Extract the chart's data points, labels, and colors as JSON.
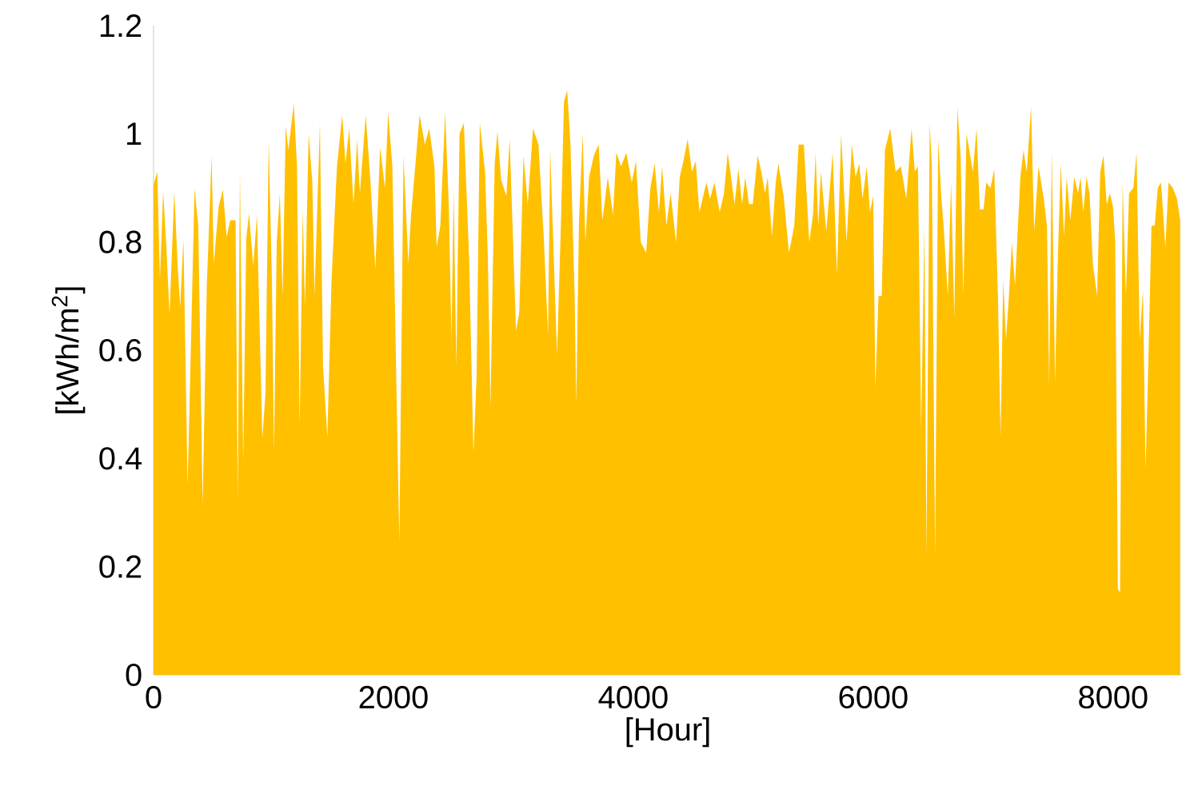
{
  "chart_data": {
    "type": "area",
    "xlabel": "[Hour]",
    "ylabel": "[kWh/m$^{2}$]",
    "color": "#ffc000",
    "xlim": [
      0,
      8575
    ],
    "ylim": [
      0,
      1.2
    ],
    "xticks": [
      0,
      2000,
      4000,
      6000,
      8000
    ],
    "yticks": [
      0,
      0.2,
      0.4,
      0.6,
      0.8,
      1,
      1.2
    ],
    "x": [
      0,
      31,
      53,
      80,
      107,
      133,
      173,
      200,
      222,
      249,
      284,
      342,
      373,
      409,
      444,
      484,
      502,
      542,
      578,
      609,
      640,
      684,
      702,
      720,
      747,
      773,
      796,
      831,
      862,
      907,
      933,
      960,
      987,
      1004,
      1027,
      1053,
      1076,
      1102,
      1124,
      1169,
      1196,
      1218,
      1244,
      1262,
      1293,
      1324,
      1342,
      1387,
      1413,
      1449,
      1484,
      1529,
      1573,
      1600,
      1631,
      1667,
      1698,
      1720,
      1769,
      1809,
      1849,
      1889,
      1929,
      1956,
      1991,
      2027,
      2049,
      2084,
      2124,
      2147,
      2178,
      2218,
      2262,
      2298,
      2342,
      2360,
      2391,
      2431,
      2462,
      2484,
      2502,
      2524,
      2551,
      2587,
      2631,
      2667,
      2693,
      2720,
      2764,
      2787,
      2809,
      2844,
      2867,
      2898,
      2942,
      2969,
      3022,
      3049,
      3084,
      3120,
      3164,
      3209,
      3253,
      3289,
      3307,
      3364,
      3396,
      3422,
      3449,
      3476,
      3511,
      3524,
      3547,
      3578,
      3600,
      3631,
      3671,
      3711,
      3742,
      3787,
      3831,
      3858,
      3898,
      3942,
      3987,
      4022,
      4062,
      4107,
      4142,
      4178,
      4213,
      4240,
      4276,
      4311,
      4356,
      4387,
      4418,
      4453,
      4489,
      4520,
      4551,
      4609,
      4640,
      4676,
      4720,
      4756,
      4787,
      4809,
      4844,
      4876,
      4907,
      4933,
      4964,
      4996,
      5036,
      5067,
      5098,
      5120,
      5156,
      5187,
      5209,
      5253,
      5298,
      5342,
      5378,
      5422,
      5467,
      5498,
      5520,
      5542,
      5564,
      5609,
      5662,
      5698,
      5733,
      5778,
      5822,
      5853,
      5884,
      5911,
      5947,
      5973,
      6000,
      6018,
      6044,
      6071,
      6098,
      6142,
      6187,
      6231,
      6276,
      6320,
      6347,
      6373,
      6400,
      6427,
      6444,
      6471,
      6489,
      6516,
      6542,
      6569,
      6587,
      6622,
      6649,
      6676,
      6702,
      6729,
      6751,
      6778,
      6809,
      6831,
      6862,
      6889,
      6920,
      6942,
      6978,
      7009,
      7040,
      7062,
      7084,
      7107,
      7129,
      7156,
      7182,
      7200,
      7227,
      7253,
      7280,
      7316,
      7342,
      7378,
      7422,
      7449,
      7467,
      7489,
      7516,
      7538,
      7564,
      7591,
      7613,
      7644,
      7676,
      7707,
      7729,
      7751,
      7778,
      7804,
      7831,
      7867,
      7893,
      7920,
      7947,
      7973,
      8000,
      8018,
      8040,
      8058,
      8080,
      8107,
      8133,
      8169,
      8196,
      8222,
      8249,
      8271,
      8293,
      8320,
      8347,
      8373,
      8400,
      8436,
      8462,
      8498,
      8533,
      8560
    ],
    "values": [
      0.906,
      0.93,
      0.73,
      0.894,
      0.79,
      0.666,
      0.894,
      0.76,
      0.68,
      0.806,
      0.35,
      0.9,
      0.83,
      0.314,
      0.72,
      0.96,
      0.76,
      0.865,
      0.897,
      0.81,
      0.84,
      0.84,
      0.32,
      0.935,
      0.393,
      0.806,
      0.853,
      0.755,
      0.85,
      0.437,
      0.52,
      0.988,
      0.726,
      0.41,
      0.8,
      0.89,
      0.7,
      1.015,
      0.97,
      1.056,
      0.94,
      0.46,
      0.86,
      0.68,
      1.0,
      0.91,
      0.7,
      1.02,
      0.57,
      0.44,
      0.73,
      0.94,
      1.035,
      0.945,
      1.01,
      0.87,
      0.99,
      0.89,
      1.035,
      0.91,
      0.75,
      0.975,
      0.9,
      1.04,
      0.94,
      0.51,
      0.246,
      0.96,
      0.76,
      0.85,
      0.93,
      1.035,
      0.98,
      1.01,
      0.94,
      0.79,
      0.83,
      1.04,
      0.865,
      0.62,
      0.895,
      0.57,
      1.0,
      1.02,
      0.77,
      0.41,
      0.55,
      1.02,
      0.93,
      0.77,
      0.495,
      0.944,
      1.005,
      0.915,
      0.885,
      0.99,
      0.636,
      0.67,
      0.96,
      0.87,
      1.01,
      0.98,
      0.81,
      0.63,
      0.97,
      0.59,
      0.83,
      1.06,
      1.08,
      0.98,
      0.7,
      0.5,
      0.84,
      1.0,
      0.8,
      0.92,
      0.96,
      0.98,
      0.84,
      0.92,
      0.85,
      0.965,
      0.94,
      0.965,
      0.91,
      0.95,
      0.8,
      0.78,
      0.9,
      0.945,
      0.855,
      0.94,
      0.83,
      0.89,
      0.8,
      0.92,
      0.95,
      0.99,
      0.93,
      0.95,
      0.855,
      0.91,
      0.88,
      0.91,
      0.855,
      0.89,
      0.965,
      0.93,
      0.87,
      0.935,
      0.87,
      0.92,
      0.87,
      0.87,
      0.96,
      0.93,
      0.89,
      0.92,
      0.81,
      0.91,
      0.945,
      0.885,
      0.78,
      0.83,
      0.98,
      0.98,
      0.8,
      0.85,
      0.965,
      0.83,
      0.93,
      0.82,
      0.965,
      0.74,
      1.0,
      0.8,
      0.98,
      0.92,
      0.945,
      0.88,
      0.94,
      0.855,
      0.885,
      0.53,
      0.7,
      0.7,
      0.97,
      1.01,
      0.93,
      0.94,
      0.88,
      1.01,
      0.93,
      0.94,
      0.455,
      0.83,
      0.22,
      1.02,
      0.94,
      0.22,
      0.99,
      0.88,
      0.83,
      0.7,
      0.91,
      0.66,
      1.05,
      0.96,
      0.7,
      1.0,
      0.96,
      0.93,
      1.01,
      0.86,
      0.86,
      0.91,
      0.9,
      0.935,
      0.7,
      0.437,
      0.73,
      0.62,
      0.69,
      0.8,
      0.72,
      0.8,
      0.92,
      0.97,
      0.93,
      1.05,
      0.82,
      0.94,
      0.88,
      0.83,
      0.535,
      0.97,
      0.54,
      0.76,
      0.945,
      0.81,
      0.92,
      0.84,
      0.92,
      0.89,
      0.92,
      0.855,
      0.92,
      0.89,
      0.76,
      0.7,
      0.93,
      0.96,
      0.87,
      0.89,
      0.865,
      0.8,
      0.158,
      0.153,
      0.91,
      0.7,
      0.89,
      0.9,
      0.965,
      0.62,
      0.71,
      0.38,
      0.57,
      0.83,
      0.83,
      0.9,
      0.91,
      0.79,
      0.91,
      0.9,
      0.88,
      0.84
    ]
  }
}
